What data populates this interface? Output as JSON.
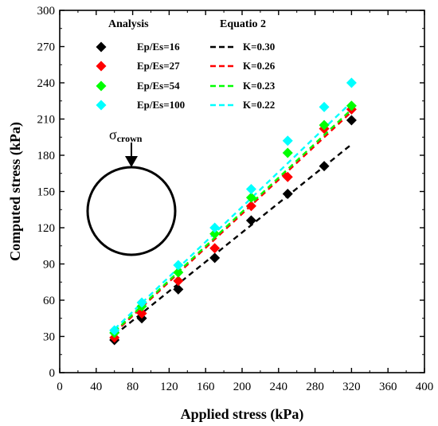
{
  "chart_data": {
    "type": "scatter",
    "xlabel": "Applied stress (kPa)",
    "ylabel": "Computed stress (kPa)",
    "xlim": [
      0,
      400
    ],
    "ylim": [
      0,
      300
    ],
    "xticks": [
      0,
      40,
      80,
      120,
      160,
      200,
      240,
      280,
      320,
      360,
      400
    ],
    "yticks": [
      0,
      30,
      60,
      90,
      120,
      150,
      180,
      210,
      240,
      270,
      300
    ],
    "grid": false,
    "legend_position": "top-left",
    "x": [
      60,
      90,
      130,
      170,
      210,
      250,
      290,
      320
    ],
    "series": [
      {
        "name": "Ep/Es=16",
        "marker": "diamond",
        "color": "#000000",
        "values": [
          27,
          45,
          69,
          95,
          126,
          148,
          171,
          209
        ]
      },
      {
        "name": "Ep/Es=27",
        "marker": "diamond",
        "color": "#ff0000",
        "values": [
          29,
          49,
          76,
          103,
          138,
          162,
          202,
          218
        ]
      },
      {
        "name": "Ep/Es=54",
        "marker": "diamond",
        "color": "#00ff00",
        "values": [
          33,
          55,
          83,
          115,
          145,
          182,
          205,
          221
        ]
      },
      {
        "name": "Ep/Es=100",
        "marker": "diamond",
        "color": "#00ffff",
        "values": [
          35,
          58,
          89,
          120,
          152,
          192,
          220,
          240
        ]
      }
    ],
    "fit_lines": [
      {
        "name": "K=0.30",
        "color": "#000000",
        "x": [
          60,
          320
        ],
        "y": [
          31,
          189
        ]
      },
      {
        "name": "K=0.26",
        "color": "#ff0000",
        "x": [
          60,
          320
        ],
        "y": [
          33,
          216
        ]
      },
      {
        "name": "K=0.23",
        "color": "#00ff00",
        "x": [
          60,
          320
        ],
        "y": [
          34,
          218
        ]
      },
      {
        "name": "K=0.22",
        "color": "#00ffff",
        "x": [
          60,
          320
        ],
        "y": [
          36,
          224
        ]
      }
    ],
    "legend_titles": {
      "markers": "Analysis",
      "lines": "Equatio 2"
    },
    "annotation": {
      "symbol": "σ",
      "subscript": "crown"
    }
  }
}
